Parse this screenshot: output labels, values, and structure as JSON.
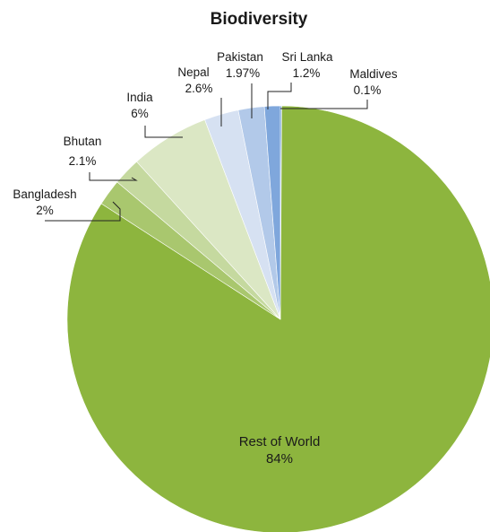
{
  "chart_data": {
    "type": "pie",
    "title": "Biodiversity",
    "slices": [
      {
        "name": "Maldives",
        "value": 0.1,
        "label": "0.1%",
        "color": "#5b8fd2"
      },
      {
        "name": "Rest of World",
        "value": 84,
        "label": "84%",
        "color": "#8db53e"
      },
      {
        "name": "Bangladesh",
        "value": 2,
        "label": "2%",
        "color": "#a9c76e"
      },
      {
        "name": "Bhutan",
        "value": 2.1,
        "label": "2.1%",
        "color": "#c5d99f"
      },
      {
        "name": "India",
        "value": 6,
        "label": "6%",
        "color": "#dbe7c4"
      },
      {
        "name": "Nepal",
        "value": 2.6,
        "label": "2.6%",
        "color": "#d6e1f2"
      },
      {
        "name": "Pakistan",
        "value": 1.97,
        "label": "1.97%",
        "color": "#b2c9e9"
      },
      {
        "name": "Sri Lanka",
        "value": 1.2,
        "label": "1.2%",
        "color": "#7fa7dc"
      }
    ],
    "legend": "none",
    "label_style": "leader-lines"
  }
}
